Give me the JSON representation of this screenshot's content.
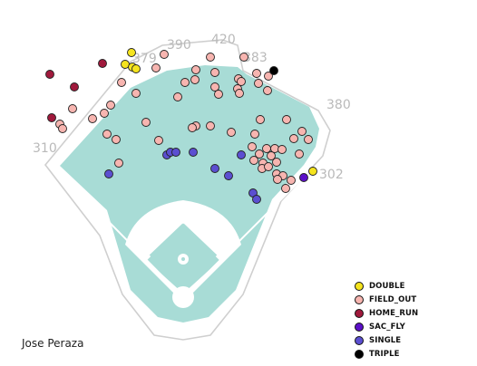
{
  "player_name": "Jose Peraza",
  "colors": {
    "outfield": "#a8dcd6",
    "infield_dirt": "#ffffff",
    "wall": "#cfcfcf",
    "distance_text": "#b9b9b9"
  },
  "chart_data": {
    "type": "scatter",
    "title": "",
    "wall_distance_labels": [
      "310",
      "379",
      "390",
      "420",
      "383",
      "380",
      "302"
    ],
    "legend_position": "bottom-right",
    "series": [
      {
        "name": "DOUBLE",
        "color": "#f5e41e",
        "points": [
          [
            145,
            58
          ],
          [
            138,
            71
          ],
          [
            146,
            74
          ],
          [
            150,
            76
          ],
          [
            345,
            189
          ]
        ]
      },
      {
        "name": "FIELD_OUT",
        "color": "#f7b5b0",
        "points": [
          [
            181,
            60
          ],
          [
            232,
            63
          ],
          [
            269,
            63
          ],
          [
            172,
            75
          ],
          [
            216,
            77
          ],
          [
            237,
            80
          ],
          [
            283,
            81
          ],
          [
            263,
            87
          ],
          [
            296,
            84
          ],
          [
            134,
            91
          ],
          [
            204,
            91
          ],
          [
            215,
            88
          ],
          [
            266,
            90
          ],
          [
            285,
            92
          ],
          [
            237,
            96
          ],
          [
            262,
            98
          ],
          [
            295,
            100
          ],
          [
            150,
            103
          ],
          [
            196,
            107
          ],
          [
            241,
            104
          ],
          [
            80,
            120
          ],
          [
            122,
            116
          ],
          [
            115,
            125
          ],
          [
            102,
            131
          ],
          [
            66,
            137
          ],
          [
            69,
            142
          ],
          [
            161,
            135
          ],
          [
            216,
            139
          ],
          [
            212,
            141
          ],
          [
            232,
            139
          ],
          [
            287,
            132
          ],
          [
            316,
            132
          ],
          [
            118,
            148
          ],
          [
            128,
            154
          ],
          [
            175,
            155
          ],
          [
            255,
            146
          ],
          [
            281,
            148
          ],
          [
            333,
            145
          ],
          [
            324,
            153
          ],
          [
            340,
            154
          ],
          [
            278,
            162
          ],
          [
            294,
            164
          ],
          [
            303,
            164
          ],
          [
            311,
            165
          ],
          [
            286,
            170
          ],
          [
            299,
            172
          ],
          [
            330,
            170
          ],
          [
            280,
            177
          ],
          [
            290,
            180
          ],
          [
            305,
            179
          ],
          [
            289,
            186
          ],
          [
            296,
            184
          ],
          [
            131,
            180
          ],
          [
            305,
            192
          ],
          [
            312,
            194
          ],
          [
            321,
            199
          ],
          [
            306,
            198
          ],
          [
            315,
            208
          ],
          [
            264,
            103
          ]
        ]
      },
      {
        "name": "HOME_RUN",
        "color": "#a0193c",
        "points": [
          [
            55,
            82
          ],
          [
            113,
            70
          ],
          [
            82,
            96
          ],
          [
            57,
            130
          ]
        ]
      },
      {
        "name": "SAC_FLY",
        "color": "#5c10c8",
        "points": [
          [
            335,
            196
          ]
        ]
      },
      {
        "name": "SINGLE",
        "color": "#5b4fd1",
        "points": [
          [
            184,
            171
          ],
          [
            188,
            168
          ],
          [
            194,
            168
          ],
          [
            213,
            168
          ],
          [
            266,
            171
          ],
          [
            120,
            192
          ],
          [
            237,
            186
          ],
          [
            252,
            194
          ],
          [
            279,
            213
          ],
          [
            283,
            220
          ]
        ]
      },
      {
        "name": "TRIPLE",
        "color": "#000000",
        "points": [
          [
            302,
            78
          ]
        ]
      }
    ]
  }
}
